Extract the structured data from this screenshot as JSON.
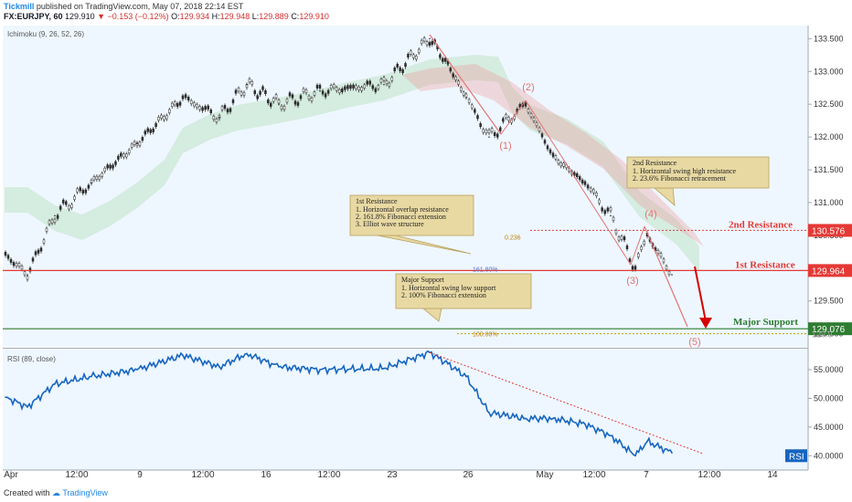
{
  "header": {
    "publisher": "Tickmill",
    "published_text": "published on TradingView.com, May 07, 2018 22:14 EST",
    "symbol_line": "FX:EURJPY, 60",
    "last": "129.910",
    "change": "▼ −0.153 (−0.12%)",
    "open_label": "O:",
    "open": "129.934",
    "high_label": "H:",
    "high": "129.948",
    "low_label": "L:",
    "low": "129.889",
    "close_label": "C:",
    "close": "129.910"
  },
  "footer": {
    "created_with": "Created with",
    "brand": "TradingView"
  },
  "chart_data": [
    {
      "type": "line",
      "indicator": "Ichimoku (9, 26, 52, 26)",
      "y_axis_ticks": [
        "133.500",
        "133.000",
        "132.500",
        "132.000",
        "131.500",
        "131.000",
        "130.500",
        "130.000",
        "129.500",
        "129.000"
      ],
      "ylim": [
        128.8,
        133.7
      ],
      "x_ticks": [
        "Apr",
        "12:00",
        "9",
        "12:00",
        "16",
        "12:00",
        "23",
        "26",
        "May",
        "12:00",
        "7",
        "12:00",
        "14"
      ],
      "price_series": [
        {
          "x": "Apr",
          "y": 130.2
        },
        {
          "x": "Apr 2",
          "y": 129.9
        },
        {
          "x": "Apr 4",
          "y": 130.8
        },
        {
          "x": "Apr 6",
          "y": 131.3
        },
        {
          "x": "Apr 9",
          "y": 131.9
        },
        {
          "x": "Apr 11",
          "y": 132.6
        },
        {
          "x": "Apr 13",
          "y": 132.3
        },
        {
          "x": "Apr 16",
          "y": 132.8
        },
        {
          "x": "Apr 18",
          "y": 132.5
        },
        {
          "x": "Apr 20",
          "y": 132.7
        },
        {
          "x": "Apr 23",
          "y": 132.8
        },
        {
          "x": "Apr 24",
          "y": 133.5
        },
        {
          "x": "Apr 25",
          "y": 133.1
        },
        {
          "x": "Apr 26",
          "y": 132.6
        },
        {
          "x": "Apr 27",
          "y": 132.0
        },
        {
          "x": "Apr 29",
          "y": 132.5
        },
        {
          "x": "May",
          "y": 131.7
        },
        {
          "x": "May 2",
          "y": 131.3
        },
        {
          "x": "May 3",
          "y": 130.8
        },
        {
          "x": "May 4",
          "y": 130.0
        },
        {
          "x": "May 5",
          "y": 130.5
        },
        {
          "x": "May 7",
          "y": 129.9
        }
      ],
      "levels": [
        {
          "name": "2nd Resistance",
          "value": "130.576",
          "color": "#e53935"
        },
        {
          "name": "1st Resistance",
          "value": "129.964",
          "color": "#e53935"
        },
        {
          "name": "Major Support",
          "value": "129.076",
          "color": "#2e7d32"
        }
      ],
      "current_price_label": "129.9",
      "fib_labels": [
        "0.236",
        "161.80%",
        "100.00%"
      ],
      "wave_labels": [
        "(1)",
        "(2)",
        "(3)",
        "(4)",
        "(5)"
      ],
      "annotations": [
        {
          "id": "first_res",
          "title": "1st Resistance",
          "lines": [
            "1. Horizontal overlap resistance",
            "2. 161.8% Fibonacci extension",
            "3. Elliot wave structure"
          ]
        },
        {
          "id": "second_res",
          "title": "2nd Resistance",
          "lines": [
            "1. Horizontal swing high resistance",
            "2. 23.6% Fibonacci retracement"
          ]
        },
        {
          "id": "major_sup",
          "title": "Major Support",
          "lines": [
            "1. Horizontal swing low support",
            "2. 100% Fibonacci extension"
          ]
        }
      ]
    },
    {
      "type": "line",
      "indicator": "RSI (89, close)",
      "badge": "RSI",
      "y_axis_ticks": [
        "55.0000",
        "50.0000",
        "45.0000",
        "40.0000"
      ],
      "ylim": [
        37.5,
        58.5
      ],
      "rsi_series": [
        {
          "x": "Apr",
          "y": 50.2
        },
        {
          "x": "Apr 2",
          "y": 48.5
        },
        {
          "x": "Apr 4",
          "y": 52.5
        },
        {
          "x": "Apr 6",
          "y": 53.8
        },
        {
          "x": "Apr 9",
          "y": 55.0
        },
        {
          "x": "Apr 11",
          "y": 57.5
        },
        {
          "x": "Apr 13",
          "y": 55.5
        },
        {
          "x": "Apr 16",
          "y": 57.8
        },
        {
          "x": "Apr 18",
          "y": 55.5
        },
        {
          "x": "Apr 20",
          "y": 55.0
        },
        {
          "x": "Apr 23",
          "y": 55.2
        },
        {
          "x": "Apr 24",
          "y": 58.0
        },
        {
          "x": "Apr 25",
          "y": 56.0
        },
        {
          "x": "Apr 26",
          "y": 53.8
        },
        {
          "x": "Apr 27",
          "y": 47.5
        },
        {
          "x": "Apr 29",
          "y": 46.5
        },
        {
          "x": "May",
          "y": 46.5
        },
        {
          "x": "May 2",
          "y": 45.5
        },
        {
          "x": "May 3",
          "y": 43.5
        },
        {
          "x": "May 4",
          "y": 40.0
        },
        {
          "x": "May 5",
          "y": 42.5
        },
        {
          "x": "May 7",
          "y": 40.5
        }
      ]
    }
  ],
  "colors": {
    "up": "#26a69a",
    "down": "#ef5350",
    "candle": "#2c2c2c",
    "rsi": "#1565c0",
    "trend": "#e53935",
    "pink": "#e57373",
    "panel_bg": "#eef7ff"
  }
}
